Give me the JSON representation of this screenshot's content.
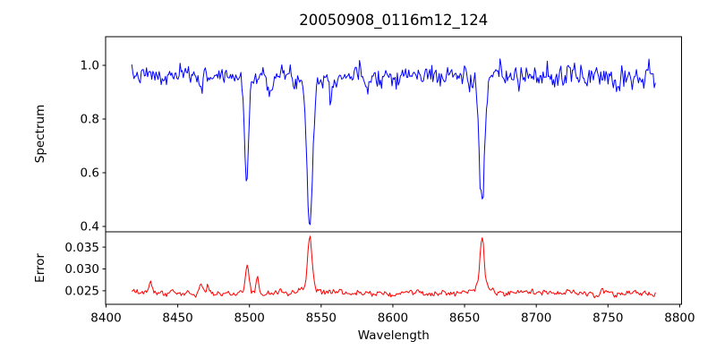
{
  "figure": {
    "background": "#ffffff",
    "axis_color": "#000000"
  },
  "chart_data": {
    "type": "line",
    "title": "20050908_0116m12_124",
    "xlabel": "Wavelength",
    "xlim": [
      8399.7,
      8801.3
    ],
    "xtick_values": [
      8400,
      8450,
      8500,
      8550,
      8600,
      8650,
      8700,
      8750,
      8800
    ],
    "xtick_labels": [
      "8400",
      "8450",
      "8500",
      "8550",
      "8600",
      "8650",
      "8700",
      "8750",
      "8800"
    ],
    "grid": false,
    "legend": "none",
    "x_start": 8418,
    "x_end": 8783,
    "n_points": 500,
    "panels": [
      {
        "name": "spectrum",
        "ylabel": "Spectrum",
        "ylim": [
          0.38,
          1.1067
        ],
        "ytick_values": [
          0.4,
          0.6,
          0.8,
          1.0
        ],
        "ytick_labels": [
          "0.4",
          "0.6",
          "0.8",
          "1.0"
        ],
        "line_color": "#0000ff",
        "baseline": 0.962,
        "noise_sigma_start": 0.015,
        "noise_sigma_end": 0.024,
        "noise_alpha": 0.25,
        "seed": 7,
        "features": [
          {
            "center": 8498.0,
            "amplitude": -0.375,
            "sigma": 1.3
          },
          {
            "center": 8498.0,
            "amplitude": -0.02,
            "sigma": 5.0
          },
          {
            "center": 8542.1,
            "amplitude": -0.52,
            "sigma": 1.9
          },
          {
            "center": 8542.1,
            "amplitude": -0.03,
            "sigma": 7.0
          },
          {
            "center": 8662.1,
            "amplitude": -0.46,
            "sigma": 1.8
          },
          {
            "center": 8662.1,
            "amplitude": -0.025,
            "sigma": 7.0
          },
          {
            "center": 8440.0,
            "amplitude": -0.035,
            "sigma": 1.2
          },
          {
            "center": 8467.0,
            "amplitude": -0.045,
            "sigma": 1.0
          },
          {
            "center": 8514.0,
            "amplitude": -0.05,
            "sigma": 1.1
          },
          {
            "center": 8557.0,
            "amplitude": -0.07,
            "sigma": 0.9
          },
          {
            "center": 8582.0,
            "amplitude": -0.04,
            "sigma": 1.0
          },
          {
            "center": 8688.0,
            "amplitude": -0.05,
            "sigma": 1.0
          },
          {
            "center": 8713.0,
            "amplitude": -0.04,
            "sigma": 0.9
          },
          {
            "center": 8757.0,
            "amplitude": -0.045,
            "sigma": 0.9
          }
        ]
      },
      {
        "name": "error",
        "ylabel": "Error",
        "ylim": [
          0.0219,
          0.0385
        ],
        "ytick_values": [
          0.025,
          0.03,
          0.035
        ],
        "ytick_labels": [
          "0.025",
          "0.030",
          "0.035"
        ],
        "line_color": "#ff0000",
        "baseline": 0.0245,
        "noise_sigma_start": 0.00035,
        "noise_sigma_end": 0.0004,
        "noise_alpha": 0.45,
        "seed": 12,
        "features": [
          {
            "center": 8430.9,
            "amplitude": 0.0031,
            "sigma": 0.9
          },
          {
            "center": 8466.0,
            "amplitude": 0.0017,
            "sigma": 0.8
          },
          {
            "center": 8471.0,
            "amplitude": 0.0015,
            "sigma": 0.7
          },
          {
            "center": 8498.5,
            "amplitude": 0.007,
            "sigma": 1.1
          },
          {
            "center": 8505.5,
            "amplitude": 0.0036,
            "sigma": 0.9
          },
          {
            "center": 8542.1,
            "amplitude": 0.0118,
            "sigma": 1.5
          },
          {
            "center": 8542.1,
            "amplitude": 0.0012,
            "sigma": 6.0
          },
          {
            "center": 8662.1,
            "amplitude": 0.0108,
            "sigma": 1.5
          },
          {
            "center": 8662.1,
            "amplitude": 0.0012,
            "sigma": 6.0
          }
        ]
      }
    ]
  }
}
